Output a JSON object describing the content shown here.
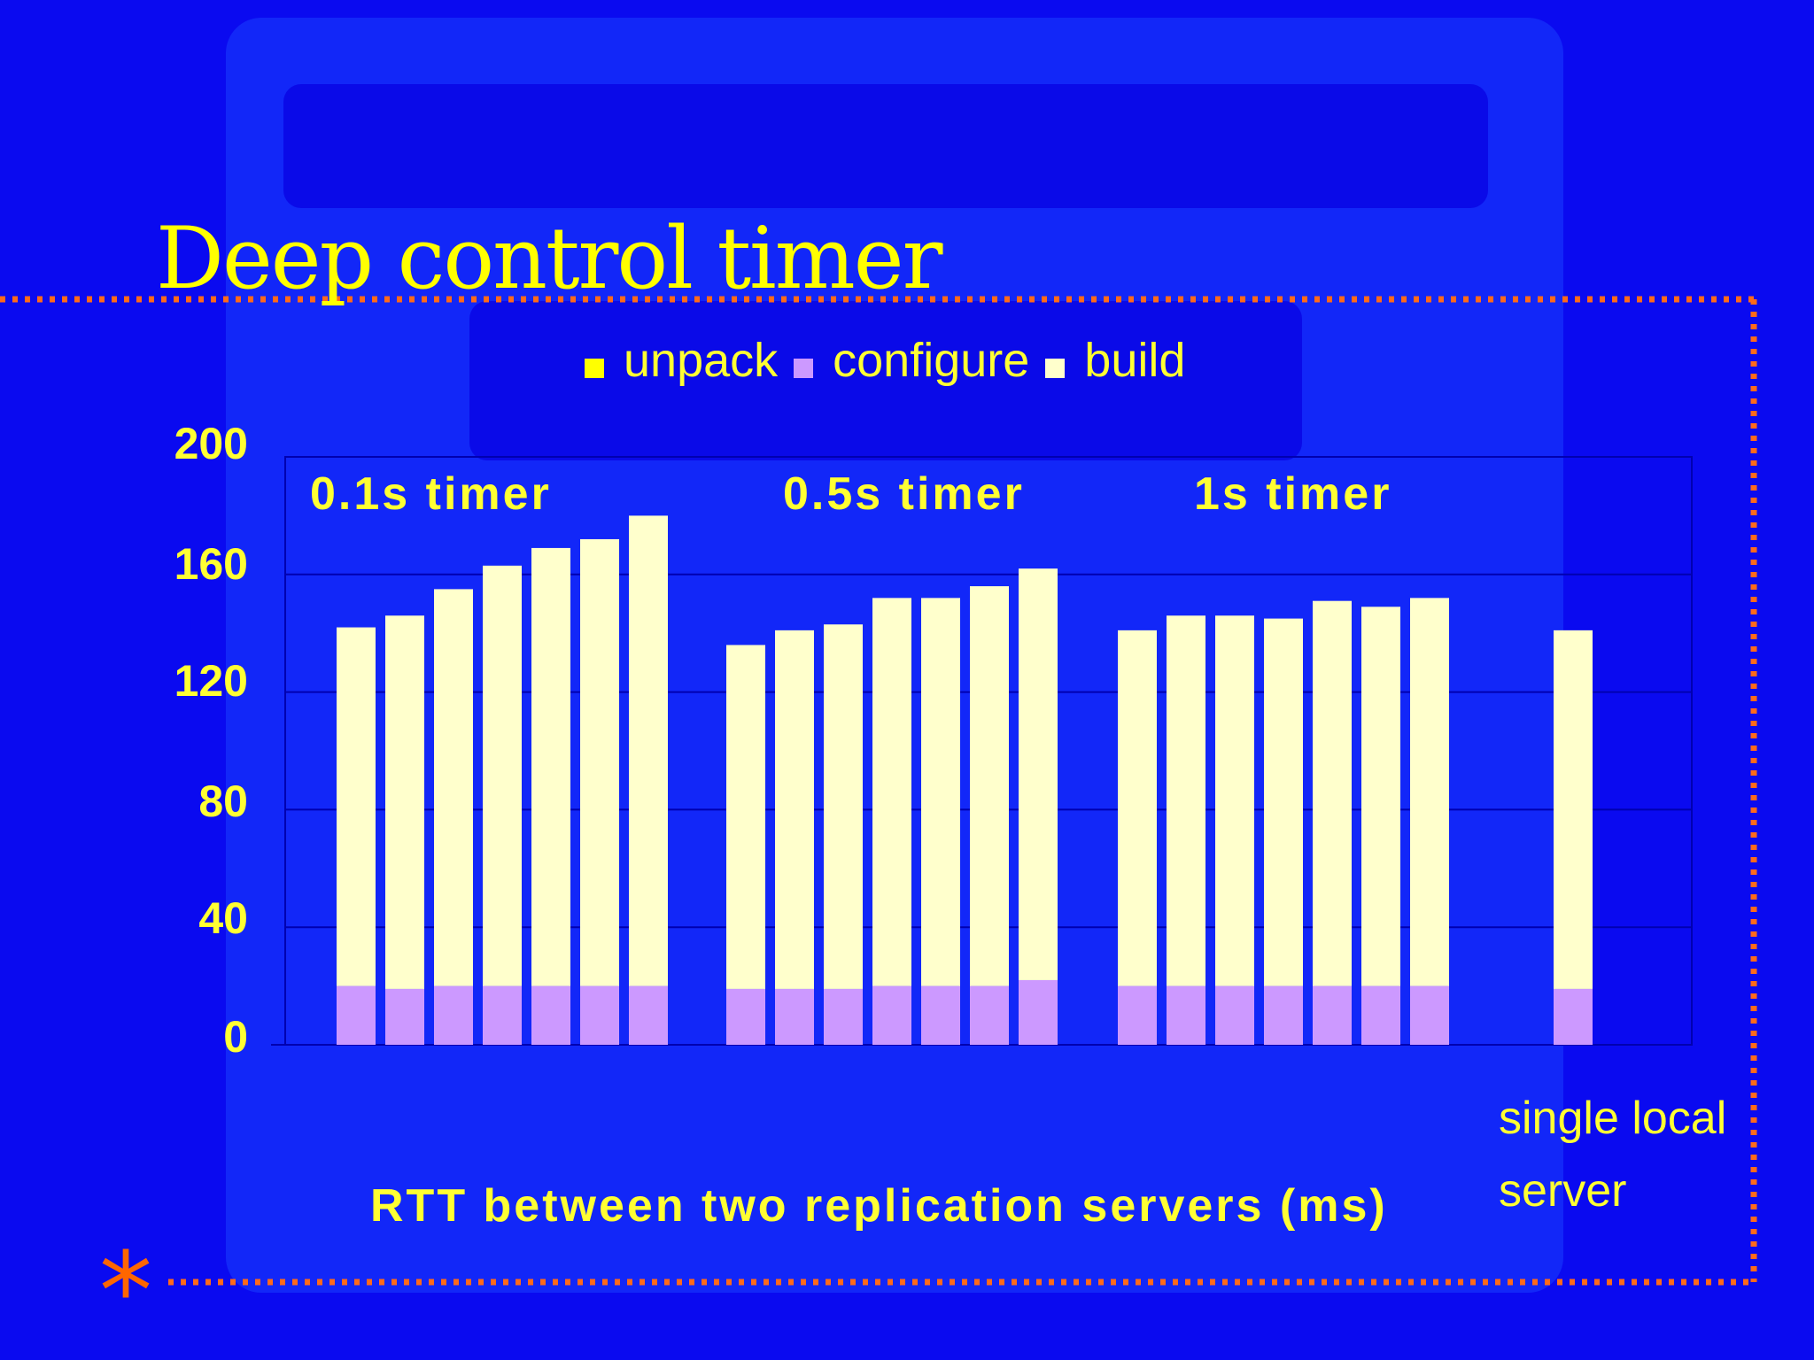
{
  "slide": {
    "title": "Deep control timer",
    "bullet_symbol": "*"
  },
  "colors": {
    "background": "#0a0af0",
    "text": "#ffff33",
    "accent": "#ff6600",
    "unpack": "#ffff00",
    "configure": "#cc99ff",
    "build": "#ffffcc"
  },
  "chart_data": {
    "type": "bar",
    "stacked": true,
    "legend": [
      "unpack",
      "configure",
      "build"
    ],
    "legend_position": "top",
    "ylim": [
      0,
      200
    ],
    "yticks": [
      "200",
      "160",
      "120",
      "80",
      "40",
      "0"
    ],
    "xlabel": "RTT between two replication servers (ms)",
    "grid": true,
    "group_labels": [
      "0.1s timer",
      "0.5s timer",
      "1s timer"
    ],
    "extra_label": [
      "single local",
      "server"
    ],
    "series": [
      {
        "name": "unpack",
        "values": [
          0,
          0,
          0,
          0,
          0,
          0,
          0,
          0,
          0,
          0,
          0,
          0,
          0,
          0,
          0,
          0,
          0,
          0,
          0,
          0,
          0,
          0
        ]
      },
      {
        "name": "configure",
        "values": [
          20,
          19,
          20,
          20,
          20,
          20,
          20,
          19,
          19,
          19,
          20,
          20,
          20,
          22,
          20,
          20,
          20,
          20,
          20,
          20,
          20,
          19
        ]
      },
      {
        "name": "build",
        "values": [
          122,
          127,
          135,
          143,
          149,
          152,
          160,
          117,
          122,
          124,
          132,
          132,
          136,
          140,
          121,
          126,
          126,
          125,
          131,
          129,
          132,
          122
        ]
      }
    ],
    "totals": [
      142,
      146,
      155,
      163,
      169,
      172,
      180,
      136,
      141,
      143,
      152,
      152,
      156,
      162,
      141,
      146,
      146,
      145,
      151,
      149,
      152,
      141
    ]
  }
}
